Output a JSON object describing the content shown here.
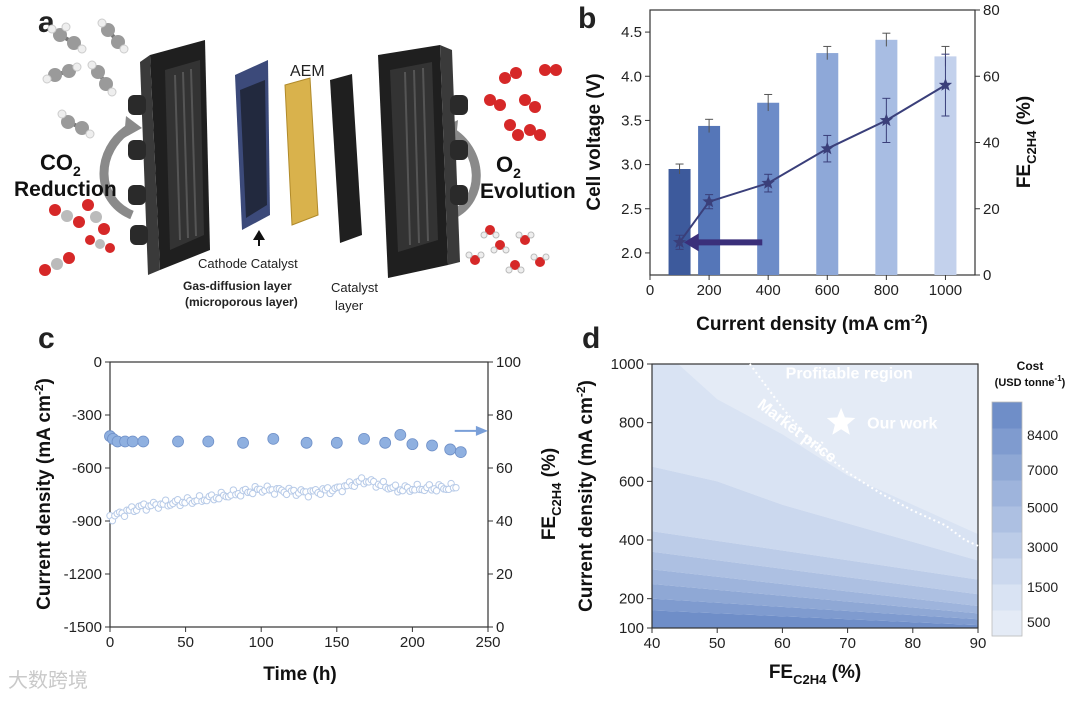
{
  "panel_letters": [
    "a",
    "b",
    "c",
    "d"
  ],
  "panel_a": {
    "labels": {
      "co2_line1": "CO",
      "co2_sub": "2",
      "co2_line2": "Reduction",
      "o2_line1": "O",
      "o2_sub": "2",
      "o2_line2": "Evolution",
      "aem": "AEM",
      "cathode_catalyst": "Cathode Catalyst",
      "gdl_line1": "Gas-diffusion layer",
      "gdl_line2": "(microporous layer)",
      "catalyst_layer_line1": "Catalyst",
      "catalyst_layer_line2": "layer"
    },
    "colors": {
      "plate": "#2b2b2b",
      "aem": "#d9b24c",
      "catalyst_layer": "#1f1f1f",
      "gdl": "#3c4a7a",
      "oxygen_atom": "#d62828",
      "carbon_atom": "#9a9a9a",
      "hydrogen_atom": "#f2f2f2"
    }
  },
  "chart_data": [
    {
      "panel": "b",
      "type": "bar",
      "xlabel": "Current density (mA cm",
      "xlabel_sup": "-2",
      "xlabel_end": ")",
      "ylabel": "Cell voltage (V)",
      "y2label": "FE",
      "y2label_sub": "C2H4",
      "y2label_end": " (%)",
      "xlim": [
        0,
        1100
      ],
      "xticks": [
        0,
        200,
        400,
        600,
        800,
        1000
      ],
      "ylim": [
        1.75,
        4.75
      ],
      "yticks": [
        2.0,
        2.5,
        3.0,
        3.5,
        4.0,
        4.5
      ],
      "y2lim": [
        0,
        80
      ],
      "y2ticks": [
        0,
        20,
        40,
        60,
        80
      ],
      "series": [
        {
          "kind": "bar",
          "axis": "right",
          "x": [
            100,
            200,
            400,
            600,
            800,
            1000
          ],
          "values": [
            32,
            45,
            52,
            67,
            71,
            66
          ],
          "errors": [
            1.5,
            2,
            2.5,
            2,
            2,
            3
          ],
          "colors": [
            "#3d5a9c",
            "#5576b8",
            "#6d8cc8",
            "#8ea8d8",
            "#a8bde3",
            "#c3d1ec"
          ]
        },
        {
          "kind": "line",
          "axis": "left",
          "x": [
            100,
            200,
            400,
            600,
            800,
            1000
          ],
          "values": [
            2.12,
            2.58,
            2.79,
            3.18,
            3.5,
            3.9
          ],
          "errors": [
            0.08,
            0.08,
            0.1,
            0.15,
            0.25,
            0.35
          ],
          "color": "#3a3f7a",
          "marker": "star"
        }
      ],
      "arrow_color": "#3a2f7a"
    },
    {
      "panel": "c",
      "type": "scatter",
      "xlabel": "Time (h)",
      "ylabel": "Current density (mA cm",
      "ylabel_sup": "-2",
      "ylabel_end": ")",
      "y2label": "FE",
      "y2label_sub": "C2H4",
      "y2label_end": " (%)",
      "xlim": [
        0,
        250
      ],
      "xticks": [
        0,
        50,
        100,
        150,
        200,
        250
      ],
      "ylim": [
        -1500,
        0
      ],
      "yticks": [
        0,
        -300,
        -600,
        -900,
        -1200,
        -1500
      ],
      "y2lim": [
        0,
        100
      ],
      "y2ticks": [
        0,
        20,
        40,
        60,
        80,
        100
      ],
      "series": [
        {
          "kind": "large-points",
          "axis": "right",
          "x": [
            0,
            2,
            5,
            10,
            15,
            22,
            45,
            65,
            88,
            108,
            130,
            150,
            168,
            182,
            192,
            200,
            213,
            225,
            232
          ],
          "values": [
            72,
            71,
            70,
            70,
            70,
            70,
            70,
            70,
            69.5,
            71,
            69.5,
            69.5,
            71,
            69.5,
            72.5,
            69,
            68.5,
            67,
            66
          ],
          "color": "#8fb0e0"
        },
        {
          "kind": "small-points",
          "axis": "left",
          "x_start": 0,
          "x_end": 230,
          "anchors": [
            [
              0,
              -880
            ],
            [
              20,
              -820
            ],
            [
              60,
              -780
            ],
            [
              100,
              -720
            ],
            [
              130,
              -740
            ],
            [
              150,
              -720
            ],
            [
              168,
              -670
            ],
            [
              190,
              -720
            ],
            [
              230,
              -710
            ]
          ],
          "color": "#b8cbe8"
        }
      ],
      "annotation_arrow_color": "#7a9fd8"
    },
    {
      "panel": "d",
      "type": "heatmap",
      "xlabel": "FE",
      "xlabel_sub": "C2H4",
      "xlabel_end": " (%)",
      "ylabel": "Current density (mA cm",
      "ylabel_sup": "-2",
      "ylabel_end": ")",
      "xlim": [
        40,
        90
      ],
      "xticks": [
        40,
        50,
        60,
        70,
        80,
        90
      ],
      "ylim": [
        100,
        1000
      ],
      "yticks": [
        100,
        200,
        400,
        600,
        800,
        1000
      ],
      "colorbar_title_line1": "Cost",
      "colorbar_title_line2": "(USD tonne",
      "colorbar_title_sup": "-1",
      "colorbar_title_end": ")",
      "colorbar_ticks": [
        500,
        1500,
        3000,
        5000,
        7000,
        8400
      ],
      "colorbar_colors": [
        "#e4ebf6",
        "#d9e3f3",
        "#cbd8ee",
        "#bccce8",
        "#adc0e2",
        "#9eb4dc",
        "#8fa8d5",
        "#7f9bcf",
        "#6f8ec8"
      ],
      "annotations": {
        "profitable": "Profitable region",
        "market": "Market price",
        "our_work": "Our work"
      },
      "our_work_point": [
        69,
        800
      ],
      "market_boundary": [
        [
          55,
          1000
        ],
        [
          60,
          850
        ],
        [
          65,
          720
        ],
        [
          70,
          630
        ],
        [
          75,
          560
        ],
        [
          80,
          500
        ],
        [
          85,
          450
        ],
        [
          88,
          400
        ],
        [
          90,
          380
        ]
      ]
    }
  ],
  "watermark": "大数跨境"
}
